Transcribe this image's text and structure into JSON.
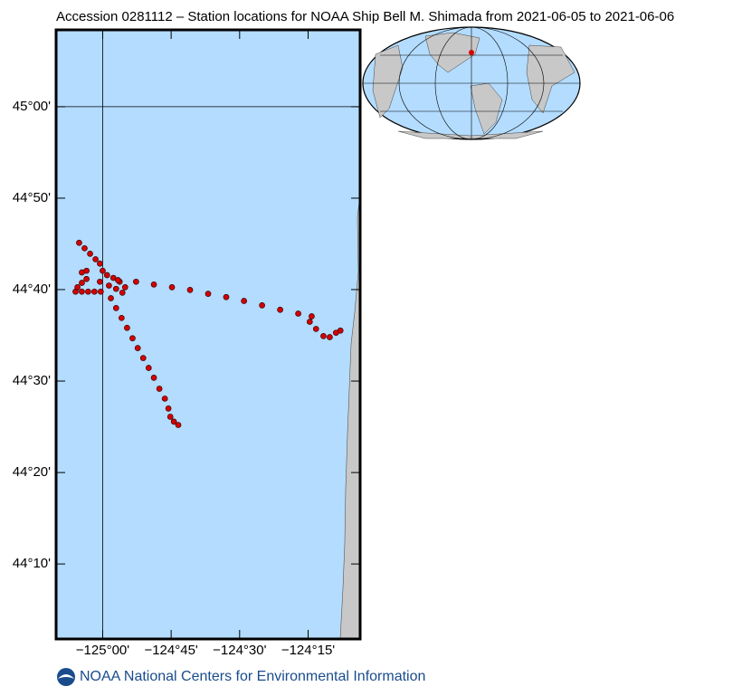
{
  "chart_data": {
    "type": "scatter",
    "title": "Accession 0281112 – Station locations for NOAA Ship Bell M. Shimada from 2021-06-05 to 2021-06-06",
    "source": "NOAA National Centers for Environmental Information",
    "xlim": [
      -125.17,
      -124.06
    ],
    "ylim": [
      44.03,
      45.14
    ],
    "xticks": [
      {
        "value": -125,
        "label": "−125°00'"
      },
      {
        "value": -124.75,
        "label": "−124°45'"
      },
      {
        "value": -124.5,
        "label": "−124°30'"
      },
      {
        "value": -124.25,
        "label": "−124°15'"
      }
    ],
    "yticks": [
      {
        "value": 44.1667,
        "label": "44°10'"
      },
      {
        "value": 44.3333,
        "label": "44°20'"
      },
      {
        "value": 44.5,
        "label": "44°30'"
      },
      {
        "value": 44.6667,
        "label": "44°40'"
      },
      {
        "value": 44.8333,
        "label": "44°50'"
      },
      {
        "value": 45,
        "label": "45°00'"
      }
    ],
    "graticule_lon": [
      -125
    ],
    "graticule_lat": [
      45
    ],
    "color": "#d40000",
    "x": [
      -125.086,
      -125.066,
      -125.046,
      -125.026,
      -125.01,
      -125.0,
      -124.984,
      -124.961,
      -124.938,
      -124.918,
      -124.928,
      -124.951,
      -124.977,
      -125.01,
      -125.059,
      -125.076,
      -124.944,
      -124.878,
      -124.813,
      -124.747,
      -124.681,
      -124.615,
      -124.549,
      -124.484,
      -124.418,
      -124.352,
      -124.286,
      -124.237,
      -124.244,
      -124.221,
      -124.194,
      -124.171,
      -124.148,
      -124.132,
      -125.099,
      -125.076,
      -125.053,
      -125.03,
      -125.007,
      -125.092,
      -125.076,
      -125.059,
      -124.97,
      -124.951,
      -124.931,
      -124.911,
      -124.891,
      -124.872,
      -124.852,
      -124.832,
      -124.813,
      -124.793,
      -124.773,
      -124.76,
      -124.753,
      -124.74,
      -124.724
    ],
    "y": [
      44.752,
      44.742,
      44.732,
      44.722,
      44.714,
      44.701,
      44.693,
      44.688,
      44.681,
      44.671,
      44.661,
      44.668,
      44.674,
      44.681,
      44.701,
      44.698,
      44.684,
      44.681,
      44.676,
      44.671,
      44.666,
      44.659,
      44.653,
      44.646,
      44.638,
      44.63,
      44.623,
      44.618,
      44.608,
      44.595,
      44.582,
      44.58,
      44.588,
      44.592,
      44.663,
      44.663,
      44.663,
      44.663,
      44.663,
      44.671,
      44.679,
      44.686,
      44.651,
      44.633,
      44.615,
      44.597,
      44.578,
      44.56,
      44.542,
      44.524,
      44.506,
      44.486,
      44.468,
      44.45,
      44.435,
      44.426,
      44.42
    ]
  }
}
